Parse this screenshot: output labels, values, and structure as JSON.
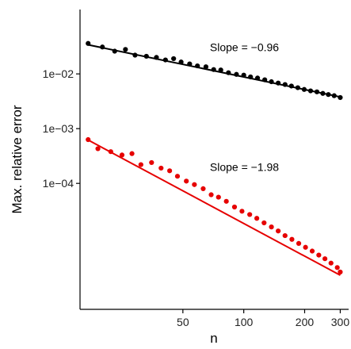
{
  "chart_data": {
    "type": "scatter",
    "title": "",
    "xlabel": "n",
    "ylabel": "Max. relative error",
    "x_scale": "log",
    "y_scale": "log",
    "xlim": [
      15.5,
      330
    ],
    "ylim": [
      5e-07,
      0.15
    ],
    "x_ticks": [
      {
        "value": 50,
        "label": "50"
      },
      {
        "value": 100,
        "label": "100"
      },
      {
        "value": 200,
        "label": "200"
      },
      {
        "value": 300,
        "label": "300"
      }
    ],
    "y_ticks": [
      {
        "value": 0.01,
        "label": "1e−02"
      },
      {
        "value": 0.001,
        "label": "1e−03"
      },
      {
        "value": 0.0001,
        "label": "1e−04"
      }
    ],
    "grid": false,
    "legend": "none",
    "annotations": [
      {
        "text": "Slope = −0.96",
        "x": 68,
        "y": 0.026
      },
      {
        "text": "Slope = −1.98",
        "x": 68,
        "y": 0.00017
      }
    ],
    "series": [
      {
        "color": "#000000",
        "slope": -0.96,
        "fit": {
          "x": [
            17,
            300
          ],
          "y": [
            0.034,
            0.0038
          ]
        },
        "x": [
          17,
          20,
          23,
          26,
          29,
          33,
          37,
          41,
          45,
          49,
          54,
          59,
          65,
          71,
          77,
          84,
          92,
          100,
          108,
          117,
          127,
          137,
          148,
          160,
          172,
          185,
          199,
          214,
          230,
          246,
          262,
          280,
          300
        ],
        "y": [
          0.036,
          0.031,
          0.026,
          0.028,
          0.022,
          0.021,
          0.02,
          0.018,
          0.019,
          0.0165,
          0.0152,
          0.014,
          0.0135,
          0.012,
          0.0118,
          0.0105,
          0.0098,
          0.0095,
          0.0088,
          0.0084,
          0.0078,
          0.0072,
          0.0068,
          0.0064,
          0.006,
          0.0056,
          0.0052,
          0.0049,
          0.0047,
          0.0044,
          0.0042,
          0.004,
          0.0037
        ]
      },
      {
        "color": "#e60000",
        "slope": -1.98,
        "fit": {
          "x": [
            17,
            300
          ],
          "y": [
            0.00062,
            2.1e-06
          ]
        },
        "x": [
          17,
          19,
          22,
          25,
          28,
          31,
          35,
          39,
          43,
          47,
          52,
          57,
          63,
          69,
          75,
          82,
          90,
          98,
          107,
          116,
          126,
          137,
          148,
          160,
          173,
          187,
          202,
          218,
          235,
          252,
          270,
          290,
          300
        ],
        "y": [
          0.00063,
          0.00043,
          0.00038,
          0.00033,
          0.00035,
          0.00022,
          0.00024,
          0.00019,
          0.00017,
          0.000135,
          0.00011,
          9.5e-05,
          8e-05,
          6.2e-05,
          5.6e-05,
          4.7e-05,
          3.7e-05,
          3.1e-05,
          2.7e-05,
          2.3e-05,
          1.9e-05,
          1.6e-05,
          1.35e-05,
          1.11e-05,
          9.5e-06,
          8e-06,
          6.8e-06,
          5.8e-06,
          4.9e-06,
          4.2e-06,
          3.5e-06,
          2.9e-06,
          2.4e-06
        ]
      }
    ]
  }
}
